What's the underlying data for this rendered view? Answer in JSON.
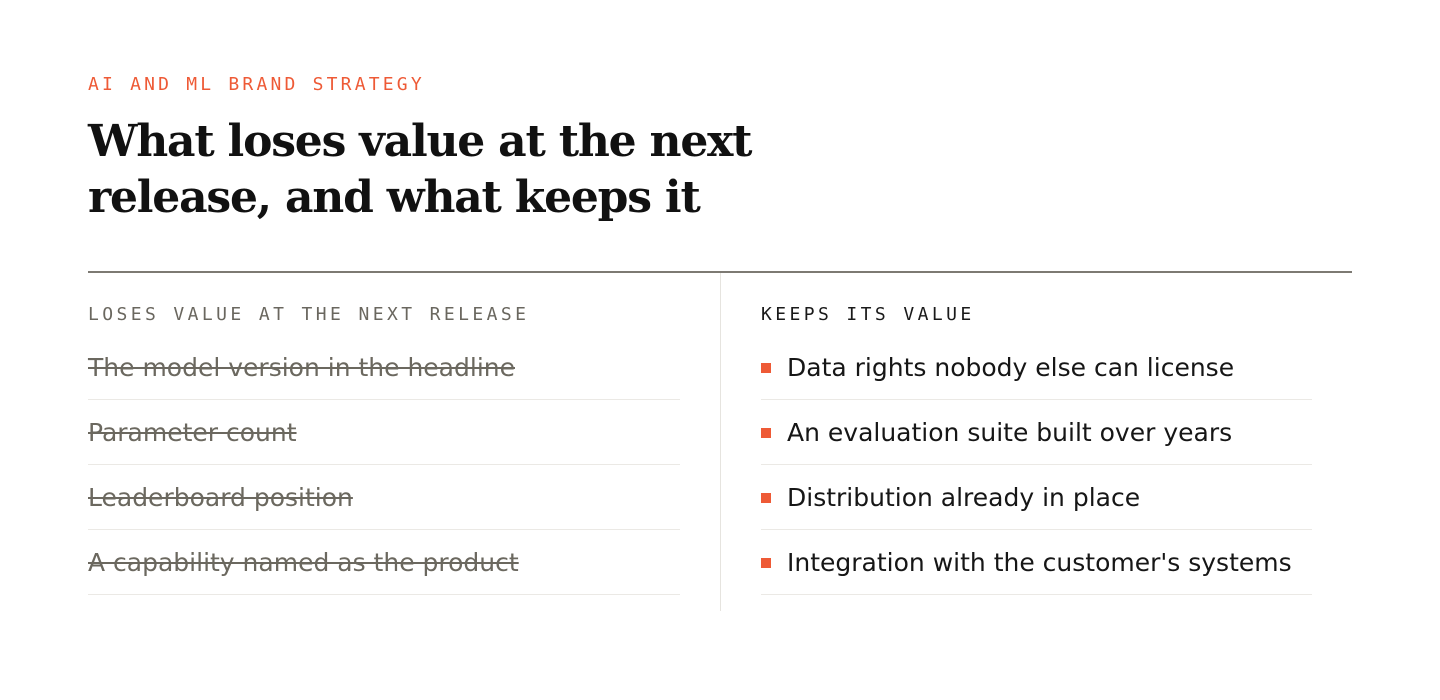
{
  "eyebrow": "AI AND ML BRAND STRATEGY",
  "title": "What loses value at the next release, and what keeps it",
  "colors": {
    "accent": "#ee5a36",
    "muted_text": "#6b685f",
    "rule": "#7d7a73"
  },
  "loses": {
    "heading": "LOSES VALUE AT THE NEXT RELEASE",
    "items": [
      "The model version in the headline",
      "Parameter count",
      "Leaderboard position",
      "A capability named as the product"
    ]
  },
  "keeps": {
    "heading": "KEEPS ITS VALUE",
    "bullet_icon": "square-bullet-icon",
    "items": [
      "Data rights nobody else can license",
      "An evaluation suite built over years",
      "Distribution already in place",
      "Integration with the customer's systems"
    ]
  }
}
